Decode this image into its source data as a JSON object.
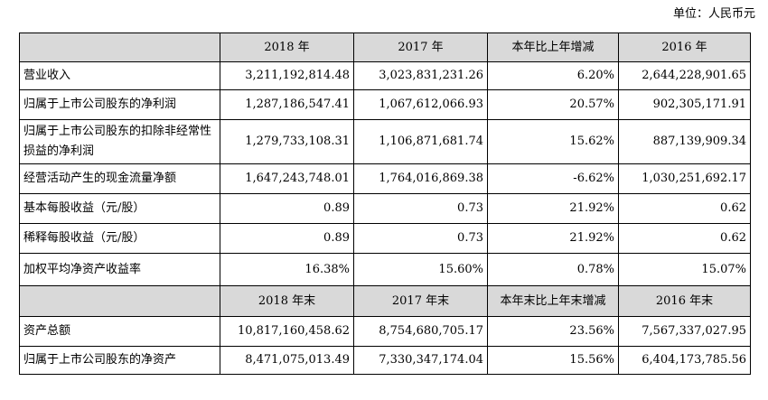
{
  "unit_label": "单位：人民币元",
  "header": {
    "col_label": "",
    "col1": "2018 年",
    "col2": "2017 年",
    "col3": "本年比上年增减",
    "col4": "2016 年"
  },
  "rows": [
    {
      "label": "营业收入",
      "v1": "3,211,192,814.48",
      "v2": "3,023,831,231.26",
      "v3": "6.20%",
      "v4": "2,644,228,901.65"
    },
    {
      "label": "归属于上市公司股东的净利润",
      "v1": "1,287,186,547.41",
      "v2": "1,067,612,066.93",
      "v3": "20.57%",
      "v4": "902,305,171.91"
    },
    {
      "label": "归属于上市公司股东的扣除非经常性损益的净利润",
      "v1": "1,279,733,108.31",
      "v2": "1,106,871,681.74",
      "v3": "15.62%",
      "v4": "887,139,909.34"
    },
    {
      "label": "经营活动产生的现金流量净额",
      "v1": "1,647,243,748.01",
      "v2": "1,764,016,869.38",
      "v3": "-6.62%",
      "v4": "1,030,251,692.17"
    },
    {
      "label": "基本每股收益（元/股）",
      "v1": "0.89",
      "v2": "0.73",
      "v3": "21.92%",
      "v4": "0.62"
    },
    {
      "label": "稀释每股收益（元/股）",
      "v1": "0.89",
      "v2": "0.73",
      "v3": "21.92%",
      "v4": "0.62"
    },
    {
      "label": "加权平均净资产收益率",
      "v1": "16.38%",
      "v2": "15.60%",
      "v3": "0.78%",
      "v4": "15.07%"
    }
  ],
  "subheader": {
    "col_label": "",
    "col1": "2018 年末",
    "col2": "2017 年末",
    "col3": "本年末比上年末增减",
    "col4": "2016 年末"
  },
  "rows2": [
    {
      "label": "资产总额",
      "v1": "10,817,160,458.62",
      "v2": "8,754,680,705.17",
      "v3": "23.56%",
      "v4": "7,567,337,027.95"
    },
    {
      "label": "归属于上市公司股东的净资产",
      "v1": "8,471,075,013.49",
      "v2": "7,330,347,174.04",
      "v3": "15.56%",
      "v4": "6,404,173,785.56"
    }
  ]
}
